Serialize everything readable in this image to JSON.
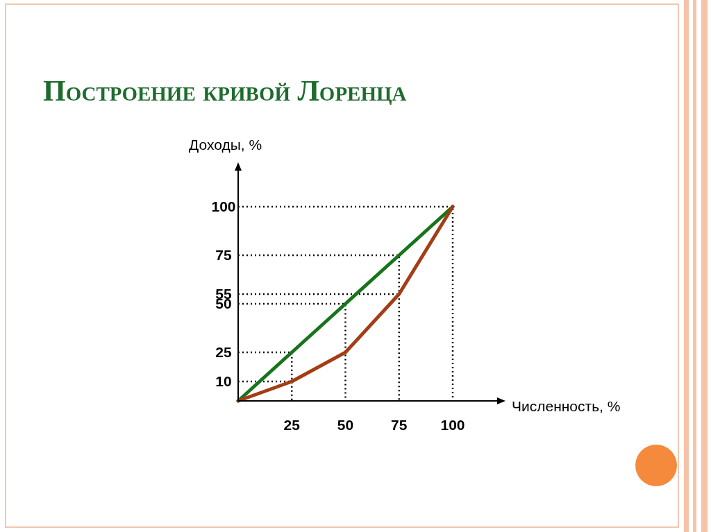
{
  "chart_data": {
    "type": "line",
    "title": "Построение кривой Лоренца",
    "xlabel": "Численность, %",
    "ylabel": "Доходы, %",
    "xlim": [
      0,
      122
    ],
    "ylim": [
      0,
      120
    ],
    "xticks": [
      25,
      50,
      75,
      100
    ],
    "yticks": [
      10,
      25,
      50,
      55,
      75,
      100
    ],
    "marker": "none",
    "line_style": "solid",
    "series": [
      {
        "color": "#000000",
        "line_style": "dotted",
        "x": [
          0,
          100,
          100
        ],
        "values": [
          100,
          100,
          0
        ]
      },
      {
        "color": "#000000",
        "line_style": "dotted",
        "x": [
          0,
          75,
          75
        ],
        "values": [
          75,
          75,
          0
        ]
      },
      {
        "color": "#000000",
        "line_style": "dotted",
        "x": [
          0,
          50,
          50
        ],
        "values": [
          50,
          50,
          0
        ]
      },
      {
        "color": "#000000",
        "line_style": "dotted",
        "x": [
          0,
          25,
          25
        ],
        "values": [
          25,
          25,
          0
        ]
      },
      {
        "color": "#000000",
        "line_style": "dotted",
        "x": [
          0,
          75
        ],
        "values": [
          55,
          55
        ]
      },
      {
        "color": "#000000",
        "line_style": "dotted",
        "x": [
          0,
          25
        ],
        "values": [
          10,
          10
        ]
      },
      {
        "color": "#17741b",
        "x": [
          0,
          25,
          50,
          75,
          100
        ],
        "values": [
          0,
          25,
          50,
          75,
          100
        ]
      },
      {
        "color": "#a33d15",
        "x": [
          0,
          25,
          50,
          75,
          100
        ],
        "values": [
          0,
          10,
          25,
          55,
          100
        ]
      }
    ]
  }
}
